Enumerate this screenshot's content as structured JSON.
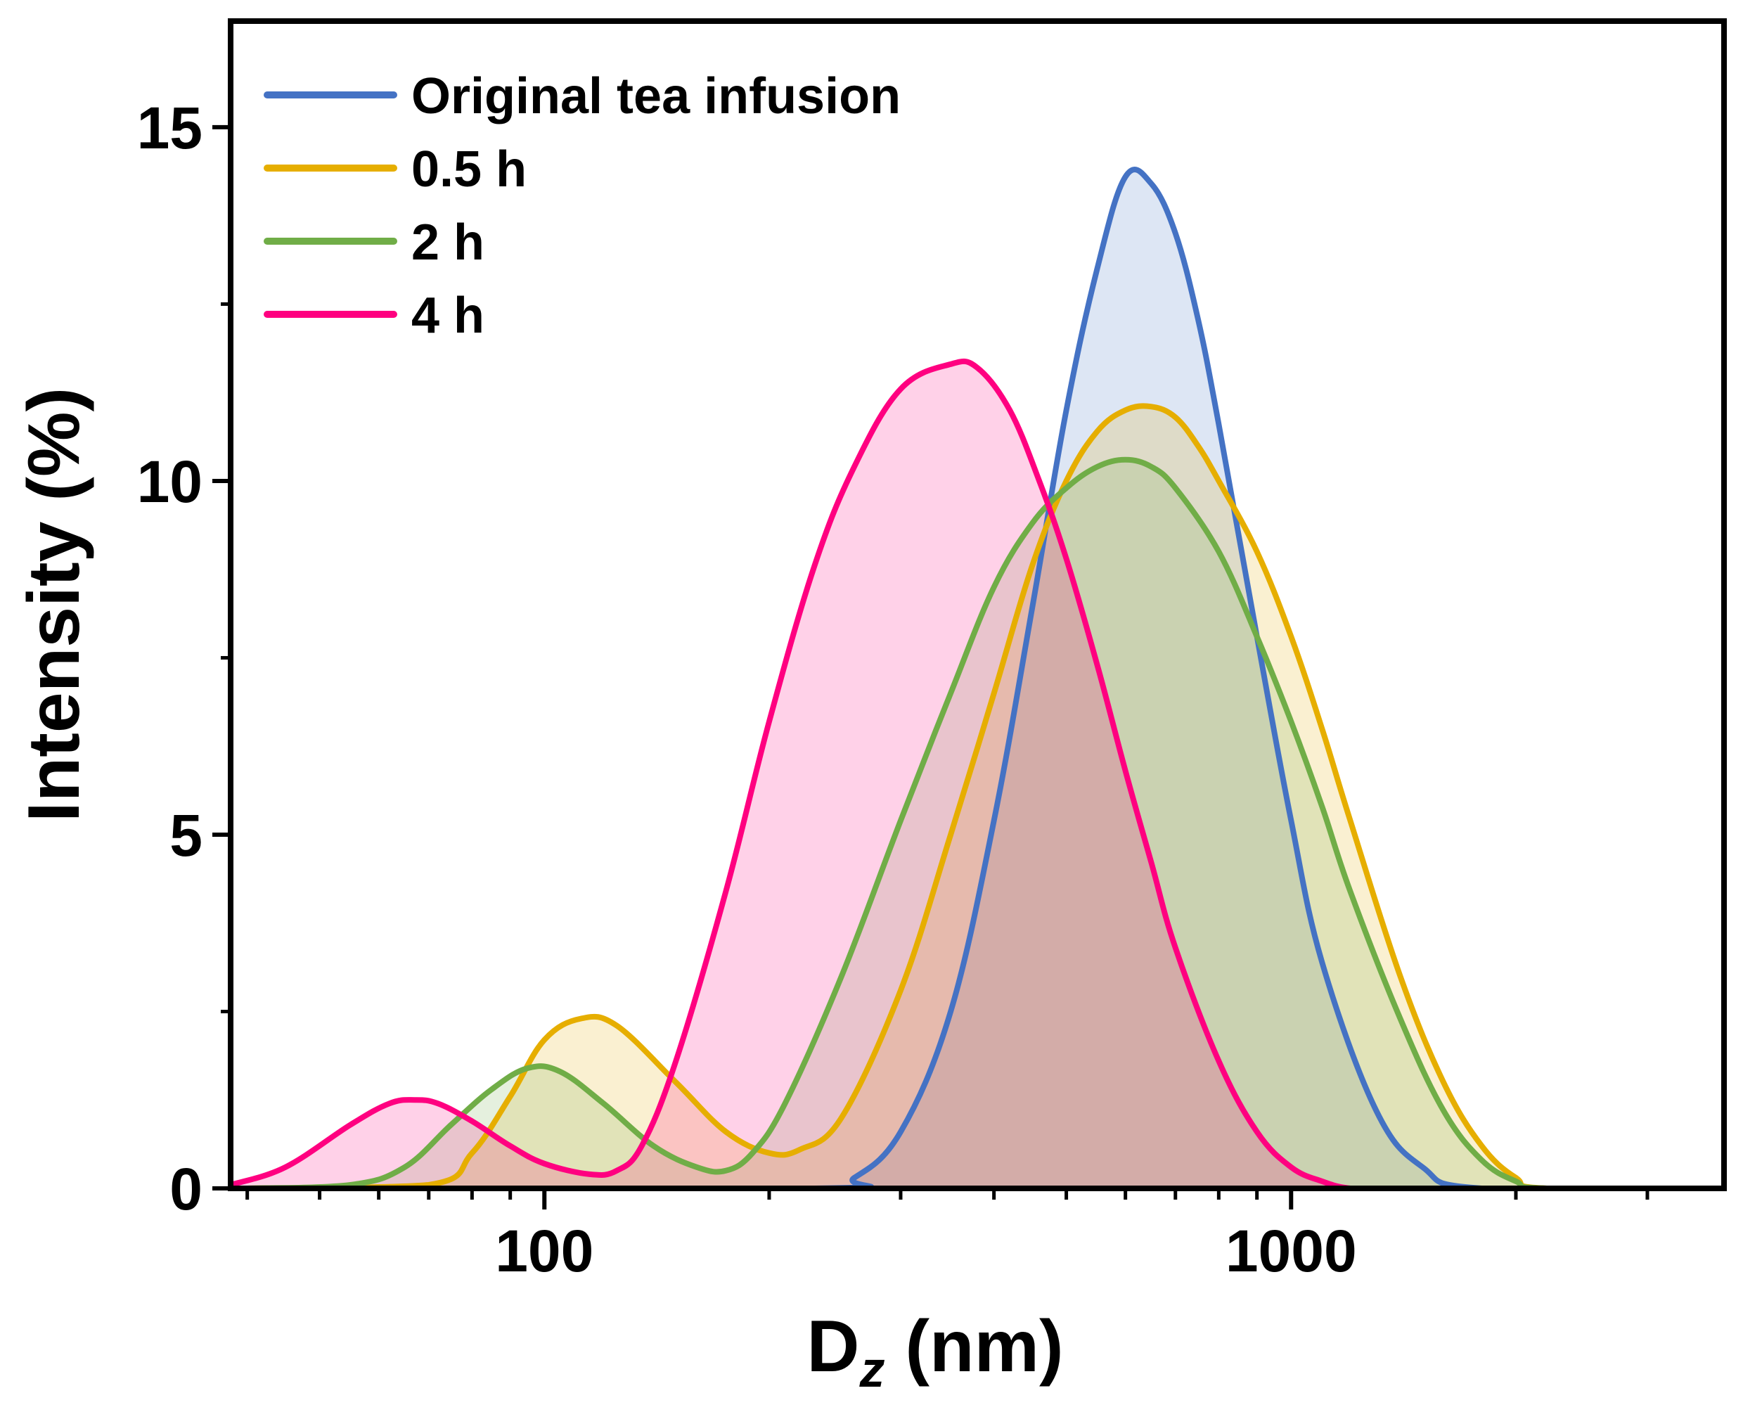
{
  "chart_data": {
    "type": "area",
    "title": "",
    "xlabel": {
      "main": "D",
      "sub": "z",
      "unit": " (nm)"
    },
    "ylabel": "Intensity (%)",
    "xscale": "log",
    "xlim": [
      38,
      3800
    ],
    "ylim": [
      0,
      16.5
    ],
    "x_ticks": [
      100,
      1000
    ],
    "x_tick_labels": [
      "100",
      "1000"
    ],
    "y_ticks": [
      0,
      5,
      10,
      15
    ],
    "y_tick_labels": [
      "0",
      "5",
      "10",
      "15"
    ],
    "legend_position": "top-left",
    "series": [
      {
        "name": "Original tea infusion",
        "color": "#4472C4",
        "fill": "#E8ECF6",
        "x": [
          40,
          230,
          260,
          300,
          350,
          400,
          450,
          500,
          550,
          600,
          650,
          700,
          750,
          800,
          900,
          1000,
          1100,
          1300,
          1500,
          1800,
          3800
        ],
        "y": [
          0,
          0,
          0.15,
          0.8,
          2.5,
          5.2,
          8.2,
          11.0,
          13.0,
          14.3,
          14.2,
          13.5,
          12.3,
          10.8,
          7.8,
          5.2,
          3.2,
          1.1,
          0.3,
          0,
          0
        ]
      },
      {
        "name": "0.5 h",
        "color": "#E6AE00",
        "fill": "#FAF6E1",
        "x": [
          40,
          70,
          80,
          90,
          100,
          112,
          125,
          150,
          175,
          200,
          220,
          250,
          300,
          350,
          400,
          450,
          500,
          550,
          600,
          650,
          700,
          750,
          800,
          900,
          1000,
          1100,
          1200,
          1400,
          1600,
          1800,
          2000,
          2200,
          3800
        ],
        "y": [
          0,
          0.05,
          0.5,
          1.3,
          2.1,
          2.4,
          2.3,
          1.5,
          0.8,
          0.5,
          0.55,
          1.0,
          2.8,
          5.0,
          7.0,
          8.8,
          10.0,
          10.7,
          11.0,
          11.05,
          10.9,
          10.5,
          10.0,
          9.0,
          7.8,
          6.5,
          5.2,
          3.0,
          1.5,
          0.6,
          0.15,
          0,
          0
        ]
      },
      {
        "name": "2 h",
        "color": "#70AD47",
        "fill": "#EEF3E4",
        "x": [
          40,
          55,
          65,
          75,
          85,
          95,
          105,
          120,
          140,
          160,
          175,
          190,
          210,
          250,
          300,
          350,
          400,
          450,
          500,
          550,
          600,
          650,
          700,
          800,
          900,
          1000,
          1100,
          1200,
          1400,
          1600,
          1800,
          2000,
          2200,
          3800
        ],
        "y": [
          0,
          0.05,
          0.3,
          0.9,
          1.4,
          1.7,
          1.65,
          1.2,
          0.6,
          0.3,
          0.25,
          0.5,
          1.2,
          3.0,
          5.2,
          7.0,
          8.5,
          9.4,
          9.9,
          10.2,
          10.3,
          10.2,
          9.9,
          9.0,
          7.8,
          6.6,
          5.4,
          4.2,
          2.4,
          1.1,
          0.4,
          0.1,
          0,
          0
        ]
      },
      {
        "name": "4 h",
        "color": "#FF0080",
        "fill": "#F7BFDD",
        "x": [
          38,
          45,
          55,
          62,
          67,
          72,
          80,
          90,
          100,
          115,
          125,
          135,
          150,
          175,
          200,
          230,
          260,
          300,
          350,
          380,
          420,
          460,
          500,
          550,
          600,
          650,
          700,
          800,
          900,
          1000,
          1100,
          1200,
          1350,
          3800
        ],
        "y": [
          0.05,
          0.3,
          0.9,
          1.2,
          1.25,
          1.2,
          0.95,
          0.6,
          0.35,
          0.2,
          0.25,
          0.6,
          1.8,
          4.2,
          6.6,
          8.8,
          10.2,
          11.3,
          11.65,
          11.6,
          11.0,
          10.0,
          8.9,
          7.4,
          5.9,
          4.6,
          3.4,
          1.8,
          0.8,
          0.3,
          0.1,
          0,
          0,
          0
        ]
      }
    ]
  }
}
